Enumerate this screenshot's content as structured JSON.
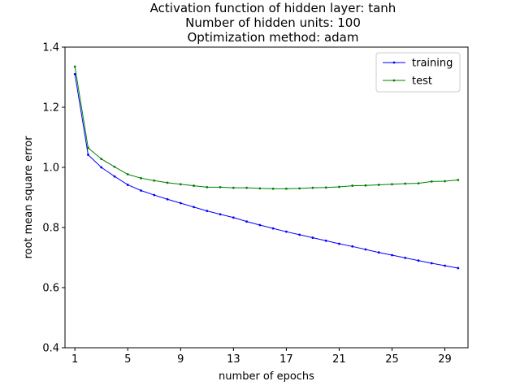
{
  "chart_data": {
    "type": "line",
    "title_lines": [
      "Activation function of hidden layer: tanh",
      "Number of hidden units: 100",
      "Optimization method: adam"
    ],
    "xlabel": "number of epochs",
    "ylabel": "root mean square error",
    "xlim": [
      0.25,
      30.75
    ],
    "ylim": [
      0.4,
      1.4
    ],
    "xticks": [
      1,
      5,
      9,
      13,
      17,
      21,
      25,
      29
    ],
    "yticks": [
      0.4,
      0.6,
      0.8,
      1.0,
      1.2,
      1.4
    ],
    "ytick_labels": [
      "0.4",
      "0.6",
      "0.8",
      "1.0",
      "1.2",
      "1.4"
    ],
    "grid": false,
    "legend_position": "top-right",
    "x": [
      1,
      2,
      3,
      4,
      5,
      6,
      7,
      8,
      9,
      10,
      11,
      12,
      13,
      14,
      15,
      16,
      17,
      18,
      19,
      20,
      21,
      22,
      23,
      24,
      25,
      26,
      27,
      28,
      29,
      30
    ],
    "series": [
      {
        "name": "training",
        "color": "#0000ff",
        "values": [
          1.31,
          1.042,
          1.0,
          0.97,
          0.942,
          0.923,
          0.908,
          0.894,
          0.881,
          0.868,
          0.855,
          0.844,
          0.833,
          0.82,
          0.808,
          0.797,
          0.786,
          0.776,
          0.766,
          0.756,
          0.746,
          0.737,
          0.727,
          0.717,
          0.708,
          0.699,
          0.69,
          0.681,
          0.673,
          0.665
        ]
      },
      {
        "name": "test",
        "color": "#008000",
        "values": [
          1.335,
          1.065,
          1.028,
          1.002,
          0.977,
          0.964,
          0.956,
          0.949,
          0.944,
          0.939,
          0.934,
          0.934,
          0.932,
          0.932,
          0.93,
          0.929,
          0.929,
          0.93,
          0.932,
          0.933,
          0.935,
          0.939,
          0.94,
          0.942,
          0.944,
          0.946,
          0.947,
          0.953,
          0.954,
          0.958
        ]
      }
    ]
  }
}
